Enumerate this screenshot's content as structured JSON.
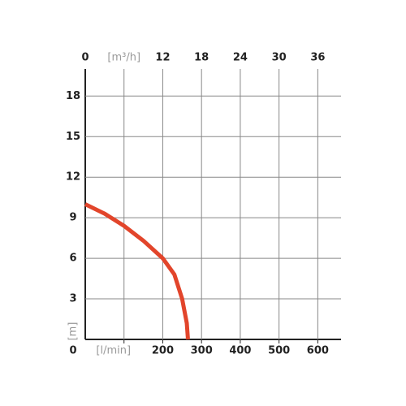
{
  "chart_data": {
    "type": "line",
    "x": [
      0,
      50,
      100,
      150,
      200,
      230,
      250,
      262,
      265
    ],
    "series": [
      {
        "color": "#e2452b",
        "values": [
          10,
          9.3,
          8.4,
          7.3,
          6,
          4.8,
          3,
          1.2,
          0
        ]
      }
    ],
    "xlim": [
      0,
      660
    ],
    "xticks": [
      {
        "value": 100,
        "label": "[l/min]"
      },
      200,
      300,
      400,
      500,
      600
    ],
    "x2lim": [
      0,
      39.6
    ],
    "x2ticks": [
      0,
      {
        "value": 6,
        "label": "[m³/h]"
      },
      12,
      18,
      24,
      30,
      36
    ],
    "ylim": [
      0,
      20
    ],
    "yticks": [
      0,
      3,
      6,
      9,
      12,
      15,
      18
    ],
    "y_label": "[m]",
    "grid": true
  }
}
